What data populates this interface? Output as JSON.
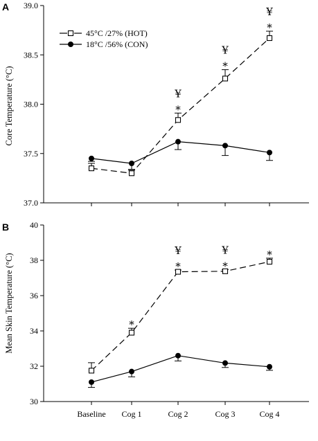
{
  "figure": {
    "legend": {
      "hot_label": "45°C /27% (HOT)",
      "con_label": "18°C /56% (CON)"
    }
  },
  "chart_data": [
    {
      "panel": "A",
      "type": "line",
      "title": "",
      "xlabel": "",
      "ylabel": "Core Temperature (°C)",
      "categories": [
        "Baseline",
        "Cog 1",
        "Cog 2",
        "Cog 3",
        "Cog 4"
      ],
      "ylim": [
        37.0,
        39.0
      ],
      "yticks": [
        37.0,
        37.5,
        38.0,
        38.5,
        39.0
      ],
      "ytick_labels": [
        "37.0",
        "37.5",
        "38.0",
        "38.5",
        "39.0"
      ],
      "legend_position": "top-left",
      "grid": false,
      "series": [
        {
          "name": "45°C /27% (HOT)",
          "key": "hot",
          "values": [
            37.35,
            37.3,
            37.84,
            38.26,
            38.67
          ],
          "errors": [
            0.05,
            0.03,
            0.07,
            0.09,
            0.07
          ],
          "error_direction": "up"
        },
        {
          "name": "18°C /56% (CON)",
          "key": "con",
          "values": [
            37.45,
            37.4,
            37.62,
            37.58,
            37.51
          ],
          "errors": [
            0.03,
            0.06,
            0.08,
            0.1,
            0.08
          ],
          "error_direction": "down"
        }
      ],
      "annotations": [
        {
          "category": "Cog 2",
          "marks": [
            "¥",
            "*"
          ]
        },
        {
          "category": "Cog 3",
          "marks": [
            "¥",
            "*"
          ]
        },
        {
          "category": "Cog 4",
          "marks": [
            "¥",
            "*"
          ]
        }
      ]
    },
    {
      "panel": "B",
      "type": "line",
      "title": "",
      "xlabel": "",
      "ylabel": "Mean Skin Temperature (°C)",
      "categories": [
        "Baseline",
        "Cog 1",
        "Cog 2",
        "Cog 3",
        "Cog 4"
      ],
      "ylim": [
        30,
        40
      ],
      "yticks": [
        30,
        32,
        34,
        36,
        38,
        40
      ],
      "ytick_labels": [
        "30",
        "32",
        "34",
        "36",
        "38",
        "40"
      ],
      "grid": false,
      "series": [
        {
          "name": "45°C /27% (HOT)",
          "key": "hot",
          "values": [
            31.75,
            33.9,
            37.35,
            37.38,
            37.92
          ],
          "errors": [
            0.45,
            0.25,
            0.1,
            0.1,
            0.2
          ],
          "error_direction": "up"
        },
        {
          "name": "18°C /56% (CON)",
          "key": "con",
          "values": [
            31.1,
            31.7,
            32.6,
            32.18,
            31.97
          ],
          "errors": [
            0.3,
            0.3,
            0.3,
            0.25,
            0.2
          ],
          "error_direction": "down"
        }
      ],
      "annotations": [
        {
          "category": "Cog 1",
          "marks": [
            "*"
          ]
        },
        {
          "category": "Cog 2",
          "marks": [
            "¥",
            "*"
          ]
        },
        {
          "category": "Cog 3",
          "marks": [
            "¥",
            "*"
          ]
        },
        {
          "category": "Cog 4",
          "marks": [
            "*"
          ]
        }
      ]
    }
  ]
}
